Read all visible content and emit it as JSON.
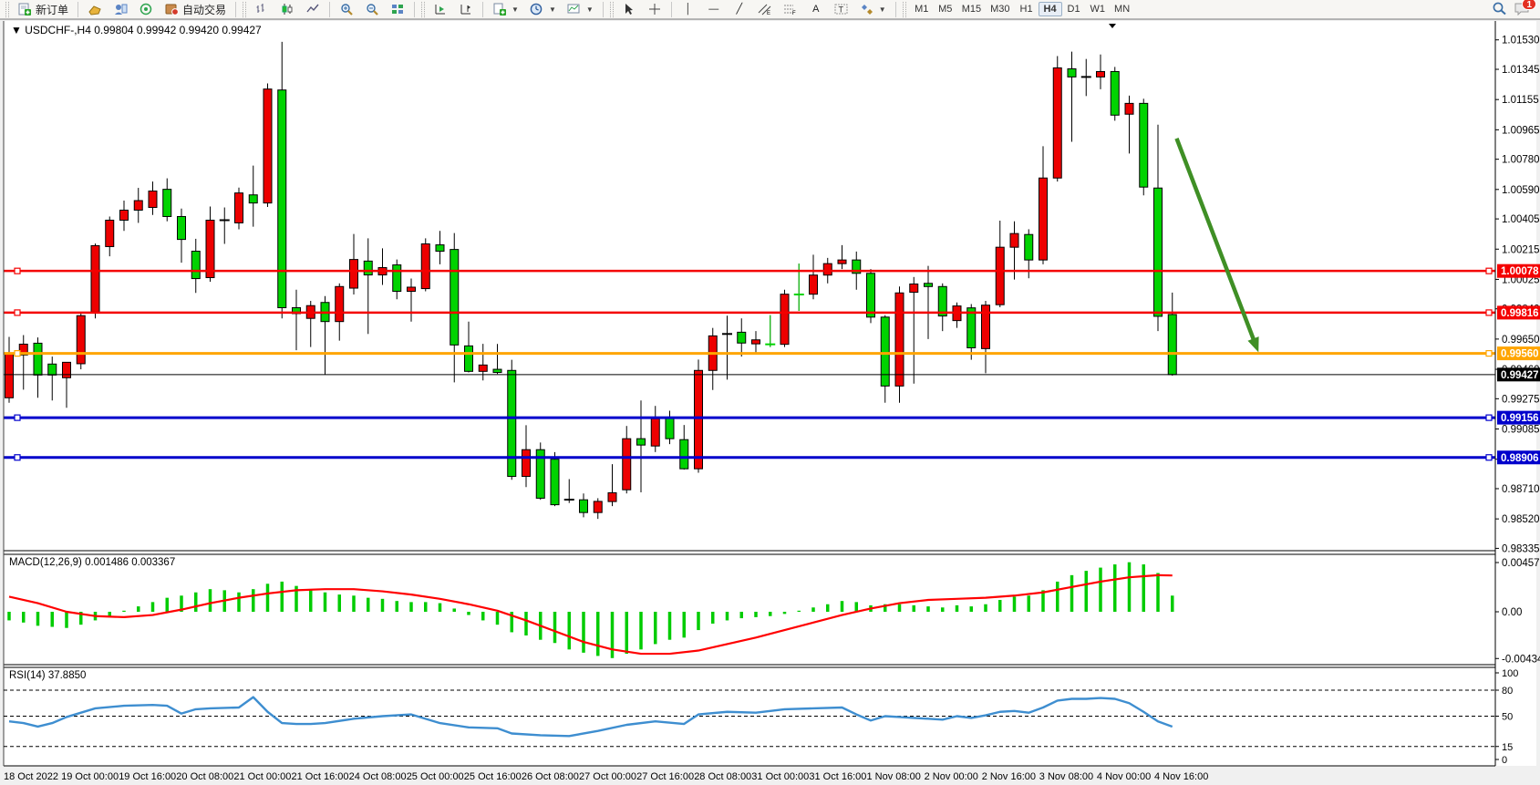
{
  "toolbar": {
    "new_order_label": "新订单",
    "autotrading_label": "自动交易",
    "timeframes": [
      "M1",
      "M5",
      "M15",
      "M30",
      "H1",
      "H4",
      "D1",
      "W1",
      "MN"
    ],
    "active_timeframe": "H4",
    "notification_count": "1"
  },
  "chart": {
    "title": {
      "symbol_period": "USDCHF-,H4",
      "open": "0.99804",
      "high": "0.99942",
      "low": "0.99420",
      "close": "0.99427"
    },
    "x_axis": {
      "labels": [
        "18 Oct 2022",
        "19 Oct 00:00",
        "19 Oct 16:00",
        "20 Oct 08:00",
        "21 Oct 00:00",
        "21 Oct 16:00",
        "24 Oct 08:00",
        "25 Oct 00:00",
        "25 Oct 16:00",
        "26 Oct 08:00",
        "27 Oct 00:00",
        "27 Oct 16:00",
        "28 Oct 08:00",
        "31 Oct 00:00",
        "31 Oct 16:00",
        "1 Nov 08:00",
        "2 Nov 00:00",
        "2 Nov 16:00",
        "3 Nov 08:00",
        "4 Nov 00:00",
        "4 Nov 16:00"
      ]
    },
    "y_axis": {
      "ticks": [
        "1.01530",
        "1.01345",
        "1.01155",
        "1.00965",
        "1.00780",
        "1.00590",
        "1.00405",
        "1.00215",
        "1.00025",
        "0.99840",
        "0.99650",
        "0.99460",
        "0.99275",
        "0.99085",
        "0.98895",
        "0.98710",
        "0.98520",
        "0.98335"
      ],
      "badges": [
        {
          "value": "1.00078",
          "color": "#f40000"
        },
        {
          "value": "0.99816",
          "color": "#f40000"
        },
        {
          "value": "0.99560",
          "color": "#ffa500"
        },
        {
          "value": "0.99427",
          "color": "#000000"
        },
        {
          "value": "0.99156",
          "color": "#0000cc"
        },
        {
          "value": "0.98906",
          "color": "#0000cc"
        }
      ]
    },
    "hlines": [
      {
        "price": 1.00078,
        "color": "#f40000",
        "w": 2.5,
        "marks": true
      },
      {
        "price": 0.99816,
        "color": "#f40000",
        "w": 2.5,
        "marks": true
      },
      {
        "price": 0.9956,
        "color": "#ffa500",
        "w": 3,
        "marks": true
      },
      {
        "price": 0.99427,
        "color": "#000000",
        "w": 1,
        "marks": false
      },
      {
        "price": 0.99156,
        "color": "#0000cc",
        "w": 3,
        "marks": true
      },
      {
        "price": 0.98906,
        "color": "#0000cc",
        "w": 3,
        "marks": true
      }
    ],
    "arrow": {
      "bar_start": 81.3,
      "price_start": 1.00911,
      "bar_end": 87.0,
      "price_end": 0.99567,
      "color": "#3f8f25"
    },
    "chart_data": {
      "type": "candlestick",
      "ylim": [
        0.98326,
        1.01643
      ],
      "candles": [
        [
          0.99281,
          0.99664,
          0.9925,
          0.99561
        ],
        [
          0.9955,
          0.99675,
          0.99332,
          0.99618
        ],
        [
          0.99624,
          0.9966,
          0.99281,
          0.99424
        ],
        [
          0.99493,
          0.9954,
          0.99264,
          0.99424
        ],
        [
          0.99407,
          0.9947,
          0.99218,
          0.99504
        ],
        [
          0.99495,
          0.9981,
          0.9946,
          0.99797
        ],
        [
          0.9982,
          1.0025,
          0.9978,
          1.00237
        ],
        [
          1.00231,
          1.0042,
          1.0017,
          1.00397
        ],
        [
          1.00397,
          1.0052,
          1.0033,
          1.0046
        ],
        [
          1.0046,
          1.006,
          1.0038,
          1.0052
        ],
        [
          1.00477,
          1.0064,
          1.0043,
          1.0058
        ],
        [
          1.00591,
          1.0066,
          1.0039,
          1.0042
        ],
        [
          1.0042,
          1.0047,
          1.0013,
          1.00276
        ],
        [
          1.00202,
          1.0028,
          0.9994,
          1.0003
        ],
        [
          1.00036,
          1.00483,
          1.0001,
          1.00397
        ],
        [
          1.00397,
          1.00477,
          1.00248,
          1.00397,
          "k"
        ],
        [
          1.0038,
          1.00602,
          1.0034,
          1.00568
        ],
        [
          1.00556,
          1.0074,
          1.00356,
          1.00505
        ],
        [
          1.00505,
          1.01256,
          1.0048,
          1.01221
        ],
        [
          1.01215,
          1.01518,
          0.9978,
          0.99847
        ],
        [
          0.99847,
          0.9996,
          0.9958,
          0.9981
        ],
        [
          0.9978,
          0.9989,
          0.996,
          0.9986
        ],
        [
          0.9988,
          0.9992,
          0.99427,
          0.9976
        ],
        [
          0.9976,
          1.0,
          0.9964,
          0.9998
        ],
        [
          0.9997,
          1.0031,
          0.9993,
          1.0015
        ],
        [
          1.0014,
          1.00283,
          0.99682,
          1.00053
        ],
        [
          1.00053,
          1.0022,
          0.9999,
          1.00099
        ],
        [
          1.00116,
          1.0015,
          0.999,
          0.9995
        ],
        [
          0.9995,
          1.0003,
          0.9976,
          0.99976
        ],
        [
          0.99967,
          1.00283,
          0.9995,
          1.00248
        ],
        [
          1.00242,
          1.0033,
          1.0012,
          1.00202
        ],
        [
          1.00213,
          1.00316,
          0.99378,
          0.99613
        ],
        [
          0.99607,
          0.9976,
          0.9944,
          0.99447
        ],
        [
          0.99447,
          0.9962,
          0.9939,
          0.99487
        ],
        [
          0.9946,
          0.99619,
          0.9943,
          0.9944
        ],
        [
          0.99453,
          0.9952,
          0.98766,
          0.98787
        ],
        [
          0.98787,
          0.99109,
          0.9872,
          0.98955
        ],
        [
          0.98955,
          0.99,
          0.9864,
          0.9865
        ],
        [
          0.98895,
          0.9894,
          0.986,
          0.98609
        ],
        [
          0.98641,
          0.9877,
          0.9862,
          0.98641,
          "k"
        ],
        [
          0.9864,
          0.9868,
          0.9853,
          0.9856
        ],
        [
          0.9856,
          0.9865,
          0.9852,
          0.9863
        ],
        [
          0.98629,
          0.98864,
          0.986,
          0.98684
        ],
        [
          0.98703,
          0.99104,
          0.9868,
          0.99024
        ],
        [
          0.99024,
          0.99264,
          0.98687,
          0.98984
        ],
        [
          0.98978,
          0.9923,
          0.9894,
          0.9915
        ],
        [
          0.99156,
          0.992,
          0.9899,
          0.99024
        ],
        [
          0.99018,
          0.9911,
          0.9883,
          0.98835
        ],
        [
          0.98835,
          0.99521,
          0.9881,
          0.99453
        ],
        [
          0.99453,
          0.9972,
          0.9933,
          0.9967
        ],
        [
          0.99682,
          0.99797,
          0.99395,
          0.99682,
          "k"
        ],
        [
          0.99693,
          0.9978,
          0.9954,
          0.99625
        ],
        [
          0.9962,
          0.997,
          0.9956,
          0.99645
        ],
        [
          0.99617,
          0.998,
          0.996,
          0.99617,
          "g"
        ],
        [
          0.99617,
          0.9996,
          0.996,
          0.99932
        ],
        [
          0.9993,
          1.00124,
          0.99827,
          0.9993,
          "g"
        ],
        [
          0.99932,
          1.0018,
          0.999,
          1.00052
        ],
        [
          1.00052,
          1.0016,
          1.0,
          1.00124
        ],
        [
          1.00124,
          1.0024,
          1.0009,
          1.00147
        ],
        [
          1.00147,
          1.002,
          0.9996,
          1.00063
        ],
        [
          1.00063,
          1.0009,
          0.9975,
          0.99788
        ],
        [
          0.99788,
          0.998,
          0.9925,
          0.99355
        ],
        [
          0.99355,
          0.9998,
          0.9925,
          0.9994
        ],
        [
          0.99944,
          1.0004,
          0.9937,
          0.99996
        ],
        [
          1.0,
          1.0011,
          0.9965,
          0.9998
        ],
        [
          0.9998,
          1.0,
          0.997,
          0.99795
        ],
        [
          0.99766,
          0.9988,
          0.9972,
          0.99858
        ],
        [
          0.99846,
          0.9987,
          0.9952,
          0.99595
        ],
        [
          0.9959,
          0.9989,
          0.99435,
          0.99863
        ],
        [
          0.99866,
          1.00394,
          0.9985,
          1.00227
        ],
        [
          1.00227,
          1.0039,
          1.00024,
          1.00313
        ],
        [
          1.00307,
          1.0034,
          1.00032,
          1.00147
        ],
        [
          1.00147,
          1.00862,
          1.0012,
          1.00662
        ],
        [
          1.00662,
          1.01428,
          1.0064,
          1.01354
        ],
        [
          1.01348,
          1.01456,
          1.0089,
          1.01297
        ],
        [
          1.01297,
          1.0141,
          1.01177,
          1.01297,
          "k"
        ],
        [
          1.01297,
          1.01438,
          1.0122,
          1.01331
        ],
        [
          1.01331,
          1.0136,
          1.01022,
          1.01057
        ],
        [
          1.01063,
          1.0118,
          1.00816,
          1.01131
        ],
        [
          1.01131,
          1.0116,
          1.00553,
          1.00605
        ],
        [
          1.00599,
          1.00997,
          0.997,
          0.99793
        ],
        [
          0.99804,
          0.99942,
          0.9942,
          0.99427
        ]
      ]
    }
  },
  "macd": {
    "label": "MACD(12,26,9)",
    "value_main": "0.001486",
    "value_signal": "0.003367",
    "scale": [
      "0.004572",
      "0.00",
      "-0.004341"
    ],
    "histogram": [
      -0.0008,
      -0.001,
      -0.0013,
      -0.0014,
      -0.0015,
      -0.0012,
      -0.0008,
      -0.0004,
      0.0001,
      0.0005,
      0.0009,
      0.0013,
      0.0015,
      0.0018,
      0.0021,
      0.002,
      0.0018,
      0.0021,
      0.0026,
      0.0028,
      0.0024,
      0.0021,
      0.0018,
      0.0016,
      0.0015,
      0.0013,
      0.0012,
      0.001,
      0.0009,
      0.0009,
      0.0008,
      0.0003,
      -0.0003,
      -0.0008,
      -0.0012,
      -0.0019,
      -0.0022,
      -0.0026,
      -0.0029,
      -0.0035,
      -0.0038,
      -0.0041,
      -0.0043,
      -0.0039,
      -0.0035,
      -0.003,
      -0.0026,
      -0.0024,
      -0.0017,
      -0.0011,
      -0.0008,
      -0.0006,
      -0.0005,
      -0.0004,
      -0.0002,
      0.0001,
      0.0004,
      0.0007,
      0.001,
      0.0009,
      0.0006,
      0.0007,
      0.0007,
      0.0006,
      0.0005,
      0.0004,
      0.0006,
      0.0005,
      0.0007,
      0.0011,
      0.0014,
      0.0015,
      0.002,
      0.0028,
      0.0034,
      0.0038,
      0.0041,
      0.0044,
      0.0046,
      0.0044,
      0.0036,
      0.0015
    ],
    "signal": [
      [
        0,
        0.0014
      ],
      [
        2,
        0.0008
      ],
      [
        4,
        0.0
      ],
      [
        6,
        -0.0004
      ],
      [
        8,
        -0.0005
      ],
      [
        10,
        -0.0003
      ],
      [
        12,
        0.0002
      ],
      [
        14,
        0.0008
      ],
      [
        16,
        0.0013
      ],
      [
        18,
        0.0017
      ],
      [
        20,
        0.002
      ],
      [
        22,
        0.0021
      ],
      [
        24,
        0.0021
      ],
      [
        26,
        0.0019
      ],
      [
        28,
        0.0016
      ],
      [
        30,
        0.0012
      ],
      [
        32,
        0.0007
      ],
      [
        34,
        0.0001
      ],
      [
        36,
        -0.0008
      ],
      [
        38,
        -0.0018
      ],
      [
        40,
        -0.0028
      ],
      [
        42,
        -0.0035
      ],
      [
        44,
        -0.0039
      ],
      [
        46,
        -0.0039
      ],
      [
        48,
        -0.0036
      ],
      [
        50,
        -0.003
      ],
      [
        52,
        -0.0024
      ],
      [
        54,
        -0.0017
      ],
      [
        56,
        -0.001
      ],
      [
        58,
        -0.0003
      ],
      [
        60,
        0.0003
      ],
      [
        62,
        0.0008
      ],
      [
        64,
        0.0011
      ],
      [
        66,
        0.0012
      ],
      [
        68,
        0.0013
      ],
      [
        70,
        0.0015
      ],
      [
        72,
        0.0018
      ],
      [
        74,
        0.0023
      ],
      [
        76,
        0.0028
      ],
      [
        78,
        0.0032
      ],
      [
        80,
        0.0034
      ],
      [
        81,
        0.00337
      ]
    ]
  },
  "rsi": {
    "label": "RSI(14)",
    "value": "37.8850",
    "scale": [
      "100",
      "80",
      "50",
      "15",
      "0"
    ],
    "dashed_levels": [
      80,
      50,
      15
    ],
    "points": [
      [
        0,
        44
      ],
      [
        1,
        42
      ],
      [
        2,
        38
      ],
      [
        3,
        42
      ],
      [
        4,
        49
      ],
      [
        6,
        59
      ],
      [
        8,
        62
      ],
      [
        10,
        63
      ],
      [
        11,
        62
      ],
      [
        12,
        53
      ],
      [
        13,
        58
      ],
      [
        14,
        59
      ],
      [
        16,
        60
      ],
      [
        17,
        72
      ],
      [
        18,
        55
      ],
      [
        19,
        42
      ],
      [
        20,
        41
      ],
      [
        21,
        41
      ],
      [
        22,
        42
      ],
      [
        24,
        47
      ],
      [
        26,
        50
      ],
      [
        28,
        52
      ],
      [
        30,
        42
      ],
      [
        32,
        37
      ],
      [
        34,
        36
      ],
      [
        35,
        30
      ],
      [
        37,
        28
      ],
      [
        39,
        27
      ],
      [
        41,
        33
      ],
      [
        43,
        40
      ],
      [
        45,
        44
      ],
      [
        47,
        41
      ],
      [
        48,
        52
      ],
      [
        50,
        55
      ],
      [
        52,
        54
      ],
      [
        54,
        58
      ],
      [
        56,
        59
      ],
      [
        58,
        60
      ],
      [
        59,
        52
      ],
      [
        60,
        45
      ],
      [
        61,
        50
      ],
      [
        62,
        49
      ],
      [
        63,
        48
      ],
      [
        64,
        47
      ],
      [
        65,
        46
      ],
      [
        66,
        50
      ],
      [
        67,
        48
      ],
      [
        68,
        51
      ],
      [
        69,
        55
      ],
      [
        70,
        56
      ],
      [
        71,
        54
      ],
      [
        72,
        60
      ],
      [
        73,
        68
      ],
      [
        74,
        70
      ],
      [
        75,
        70
      ],
      [
        76,
        71
      ],
      [
        77,
        70
      ],
      [
        78,
        65
      ],
      [
        79,
        55
      ],
      [
        80,
        44
      ],
      [
        81,
        37.9
      ]
    ]
  },
  "colors": {
    "bull": "#ed0000",
    "bear": "#00d300",
    "wick": "#000000",
    "macd_hist": "#00cc00",
    "macd_signal": "#ff0000",
    "rsi_line": "#3e8ed0",
    "arrow": "#3f8f25",
    "panel_bg": "#ffffff",
    "axis_text": "#000000",
    "badge_text": "#ffffff"
  }
}
